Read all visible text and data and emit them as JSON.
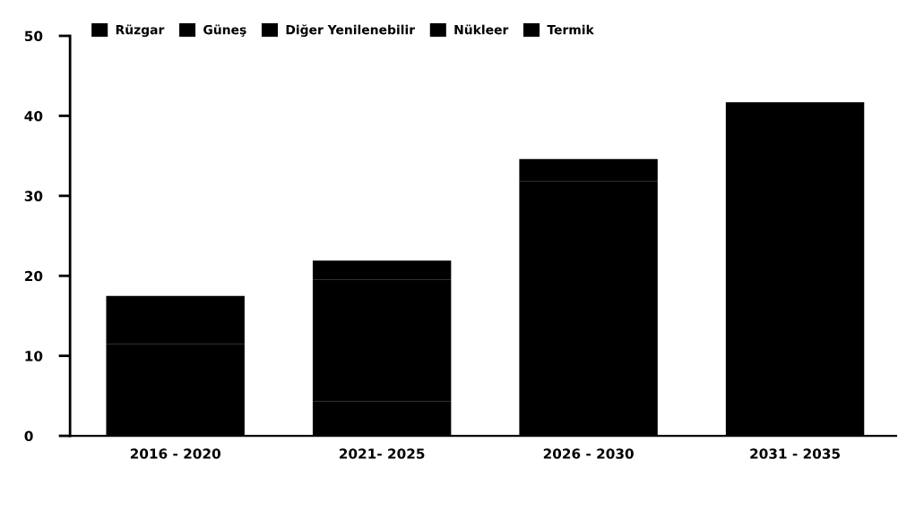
{
  "chart_data": {
    "type": "bar",
    "stacked": true,
    "categories": [
      "2016 - 2020",
      "2021- 2025",
      "2026 - 2030",
      "2031 - 2035"
    ],
    "series": [
      {
        "name": "Rüzgar",
        "color": "#000000",
        "values": [
          11.5,
          4.3,
          12.2,
          21.6
        ]
      },
      {
        "name": "Güneş",
        "color": "#000000",
        "values": [
          6.0,
          15.2,
          4.8,
          20.1
        ]
      },
      {
        "name": "Diğer Yenilenebilir",
        "color": "#000000",
        "values": [
          null,
          2.4,
          14.8,
          null
        ]
      },
      {
        "name": "Nükleer",
        "color": "#000000",
        "values": [
          null,
          null,
          2.8,
          null
        ]
      },
      {
        "name": "Termik",
        "color": "#000000",
        "values": [
          null,
          null,
          null,
          null
        ]
      }
    ],
    "ylim": [
      0,
      50
    ],
    "yticks": [
      0,
      10,
      20,
      30,
      40,
      50
    ],
    "legend": "top",
    "grid": false
  }
}
